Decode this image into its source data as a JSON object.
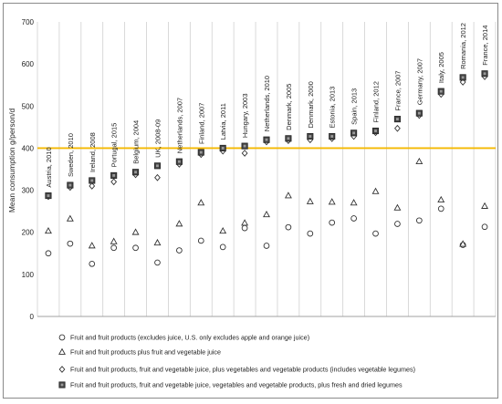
{
  "chart_data": {
    "type": "scatter",
    "title": "",
    "xlabel": "",
    "ylabel": "Mean consumption g/person/d",
    "ylim": [
      0,
      700
    ],
    "yticks": [
      0,
      100,
      200,
      300,
      400,
      500,
      600,
      700
    ],
    "grid": "vertical gridlines between countries",
    "reference_line": {
      "value": 400,
      "color": "#f5b800"
    },
    "legend_position": "bottom",
    "categories": [
      "Austria, 2010",
      "Sweden, 2010",
      "Ireland, 2008",
      "Portugal, 2015",
      "Belgium, 2004",
      "UK, 2008-09",
      "Netherlands, 2007",
      "Finland, 2007",
      "Latvia, 2011",
      "Hungary, 2003",
      "Netherlands, 2010",
      "Denmark, 2005",
      "Denmark, 2000",
      "Estonia, 2013",
      "Spain, 2013",
      "Finland, 2012",
      "France, 2007",
      "Germany, 2007",
      "Italy, 2005",
      "Romania, 2012",
      "France, 2014"
    ],
    "series": [
      {
        "name": "Fruit and fruit products (excludes juice, U.S. only excludes apple and orange juice)",
        "marker": "circle",
        "values": [
          150,
          173,
          125,
          163,
          163,
          128,
          157,
          180,
          165,
          210,
          168,
          212,
          197,
          223,
          233,
          197,
          220,
          228,
          256,
          170,
          213
        ]
      },
      {
        "name": "Fruit and fruit products plus fruit and vegetable juice",
        "marker": "triangle",
        "values": [
          203,
          232,
          168,
          178,
          200,
          175,
          220,
          270,
          203,
          222,
          242,
          287,
          273,
          272,
          270,
          297,
          258,
          368,
          277,
          172,
          262
        ]
      },
      {
        "name": "Fruit and fruit products, fruit and vegetable juice, plus vegetables and vegetable products (includes vegetable legumes)",
        "marker": "diamond",
        "values": [
          285,
          307,
          310,
          320,
          337,
          330,
          362,
          385,
          393,
          388,
          415,
          418,
          420,
          423,
          428,
          437,
          447,
          478,
          528,
          557,
          570
        ]
      },
      {
        "name": "Fruit and fruit products, fruit and vegetable juice, vegetables and vegetable products, plus fresh and dried legumes",
        "marker": "square",
        "values": [
          287,
          312,
          323,
          335,
          343,
          358,
          368,
          390,
          400,
          405,
          420,
          423,
          428,
          428,
          436,
          441,
          469,
          483,
          535,
          568,
          577
        ]
      }
    ]
  }
}
